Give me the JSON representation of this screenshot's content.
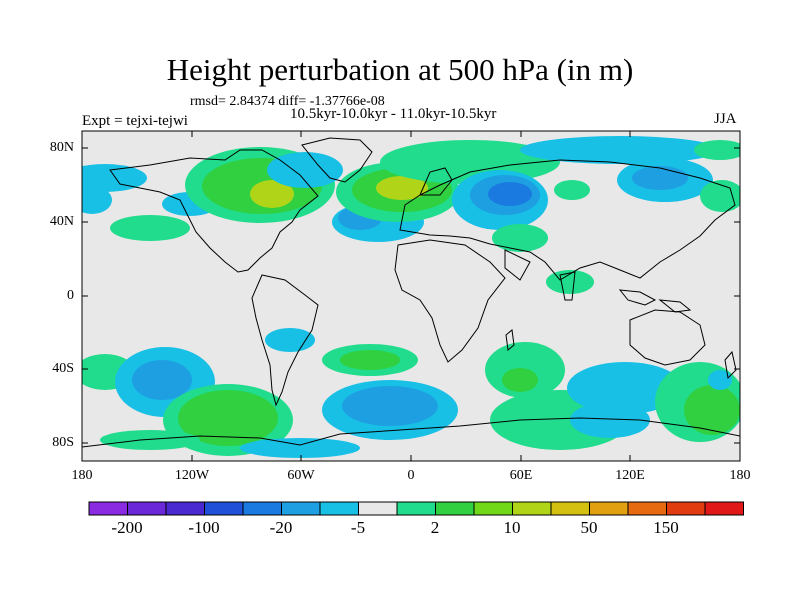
{
  "title": "Height perturbation at 500 hPa (in m)",
  "stats_line": "rmsd= 2.84374 diff= -1.37766e-08",
  "periods_line": "10.5kyr-10.0kyr - 11.0kyr-10.5kyr",
  "experiment": "Expt = tejxi-tejwi",
  "season": "JJA",
  "latitude_labels": [
    "80N",
    "40N",
    "0",
    "40S",
    "80S"
  ],
  "longitude_labels": [
    "180",
    "120W",
    "60W",
    "0",
    "60E",
    "120E",
    "180"
  ],
  "colorbar": {
    "labels": [
      "-200",
      "-100",
      "-20",
      "-5",
      "2",
      "10",
      "50",
      "150"
    ],
    "colors": [
      "#8a2be2",
      "#6a28d8",
      "#4a2ad0",
      "#2050d8",
      "#1a7ae0",
      "#1e9fe2",
      "#18c0e6",
      "#e8e8e8",
      "#20dc8c",
      "#30d040",
      "#70d818",
      "#b0d418",
      "#d4c010",
      "#e0a010",
      "#e66a10",
      "#e03c10",
      "#e01818"
    ]
  },
  "map_colors": {
    "ocean_bg": "#e8e8e8",
    "neg_light": "#18c0e6",
    "neg_mid": "#1e9fe2",
    "neg_dark": "#1a7ae0",
    "pos_light": "#20dc8c",
    "pos_mid": "#30d040",
    "pos_strong": "#b0d418"
  }
}
